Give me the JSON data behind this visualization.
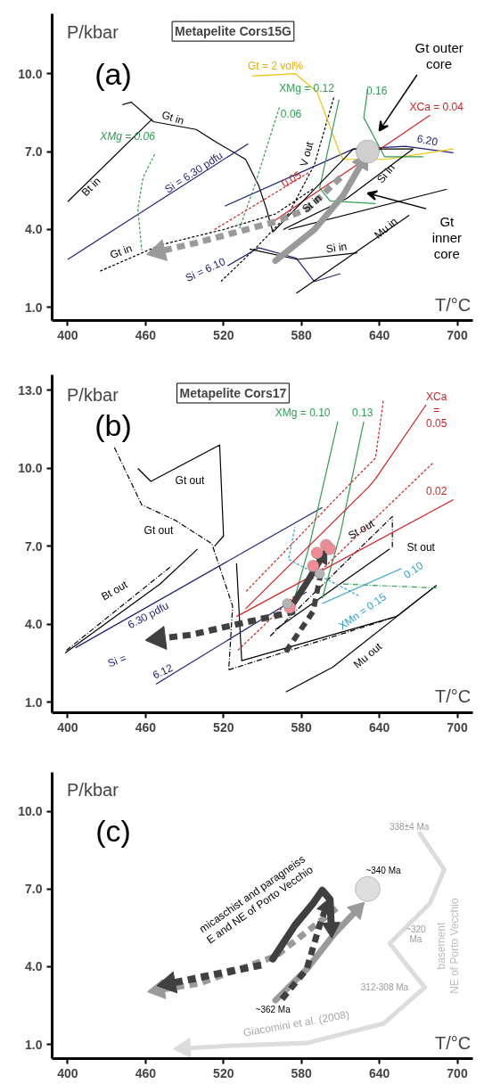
{
  "chart_data": [
    {
      "type": "line",
      "title": "Metapelite Cors15G",
      "xlabel": "T/°C",
      "ylabel": "P/kbar",
      "xlim": [
        388,
        712
      ],
      "ylim": [
        0.5,
        12.3
      ],
      "xticks": [
        400,
        460,
        520,
        580,
        640,
        700
      ],
      "yticks": [
        {
          "value": 1,
          "label": "1.0"
        },
        {
          "value": 4,
          "label": "4.0"
        },
        {
          "value": 7,
          "label": "7.0"
        },
        {
          "value": 10,
          "label": "10.0"
        }
      ],
      "series": [
        {
          "x": [
            442,
            449,
            466,
            499,
            513,
            537,
            547,
            553,
            558
          ],
          "values": [
            8.8,
            8.9,
            8.15,
            7.85,
            7.4,
            6.7,
            5.7,
            4.8,
            3.9
          ],
          "color": "#000000",
          "line_style": "solid"
        },
        {
          "x": [
            465,
            400
          ],
          "values": [
            8.25,
            5.07
          ],
          "color": "#000000",
          "line_style": "solid"
        },
        {
          "x": [
            539,
            400
          ],
          "values": [
            7.3,
            2.85
          ],
          "color": "#1f1f7a",
          "line_style": "solid"
        },
        {
          "x": [
            467,
            458,
            454,
            457
          ],
          "values": [
            6.9,
            6.0,
            4.8,
            3.2
          ],
          "color": "#2e9e4f",
          "line_style": "dashed"
        },
        {
          "x": [
            425,
            471,
            520,
            560,
            590
          ],
          "values": [
            2.4,
            3.4,
            4.0,
            4.6,
            5.6
          ],
          "color": "#000000",
          "line_style": "dashed"
        },
        {
          "x": [
            518,
            545,
            570,
            590,
            605
          ],
          "values": [
            2.0,
            3.3,
            4.6,
            6.5,
            9.1
          ],
          "color": "#000000",
          "line_style": "dashed"
        },
        {
          "x": [
            523,
            547,
            576,
            590,
            610
          ],
          "values": [
            2.6,
            3.3,
            2.9,
            2.0,
            2.3
          ],
          "color": "#1f1f7a",
          "line_style": "solid"
        },
        {
          "x": [
            521,
            620,
            660,
            697
          ],
          "values": [
            4.9,
            7.1,
            7.2,
            6.95
          ],
          "color": "#1f1f7a",
          "line_style": "solid"
        },
        {
          "x": [
            542,
            575,
            592,
            609,
            612,
            645,
            697
          ],
          "values": [
            9.9,
            10.0,
            9.3,
            7.0,
            6.7,
            6.7,
            7.1
          ],
          "color": "#f2c200",
          "line_style": "solid"
        },
        {
          "x": [
            609,
            594,
            602,
            637
          ],
          "values": [
            9.0,
            5.6,
            5.1,
            5.0
          ],
          "color": "#2e9e4f",
          "line_style": "solid"
        },
        {
          "x": [
            631,
            628,
            644,
            674
          ],
          "values": [
            9.4,
            8.3,
            6.8,
            6.8
          ],
          "color": "#2e9e4f",
          "line_style": "solid"
        },
        {
          "x": [
            563,
            544,
            532
          ],
          "values": [
            8.7,
            5.7,
            4.0
          ],
          "color": "#2e9e4f",
          "line_style": "dashed"
        },
        {
          "x": [
            558,
            679
          ],
          "values": [
            4.3,
            8.4
          ],
          "color": "#d42020",
          "line_style": "solid"
        },
        {
          "x": [
            513,
            586
          ],
          "values": [
            4.0,
            6.2
          ],
          "color": "#d42020",
          "line_style": "dashed"
        },
        {
          "x": [
            558,
            620,
            666
          ],
          "values": [
            3.9,
            7.1,
            7.1
          ],
          "color": "#000000",
          "line_style": "solid"
        },
        {
          "x": [
            566,
            615,
            666
          ],
          "values": [
            4.0,
            5.2,
            7.1
          ],
          "color": "#000000",
          "line_style": "solid"
        },
        {
          "x": [
            570,
            692
          ],
          "values": [
            4.0,
            5.55
          ],
          "color": "#000000",
          "line_style": "solid"
        },
        {
          "x": [
            576,
            663
          ],
          "values": [
            1.55,
            4.55
          ],
          "color": "#000000",
          "line_style": "solid"
        },
        {
          "x": [
            540,
            577,
            623
          ],
          "values": [
            3.25,
            2.85,
            3.1
          ],
          "color": "#000000",
          "line_style": "solid"
        },
        {
          "x": [
            560,
            590,
            612,
            627
          ],
          "values": [
            2.8,
            4.0,
            5.3,
            6.6
          ],
          "color": "#9a9a9a",
          "line_style": "solid"
        },
        {
          "x": [
            610,
            585,
            560,
            530,
            500,
            470
          ],
          "values": [
            6.0,
            4.8,
            4.3,
            3.9,
            3.5,
            3.15
          ],
          "color": "#9a9a9a",
          "line_style": "dashed"
        },
        {
          "type": "scatter",
          "x": [
            631
          ],
          "values": [
            7.0
          ],
          "color": "#d0d0d0",
          "marker": "circle"
        }
      ],
      "annotations": [
        "(a)",
        "Gt = 2 vol%",
        "XMg = 0.12",
        "0.16",
        "0.06",
        "XCa = 0.04",
        "Gt outer\ncore",
        "XMg = 0.06",
        "Gt in",
        "Bt in",
        "Si = 6.30 pdfu",
        "V out",
        "6.20",
        "0.05",
        "St in",
        "Si in",
        "Gt\ninner\ncore",
        "Gt in",
        "Si = 6.10",
        "Si in",
        "Mu in"
      ]
    },
    {
      "type": "line",
      "title": "Metapelite Cors17",
      "xlabel": "T/°C",
      "ylabel": "P/kbar",
      "xlim": [
        388,
        712
      ],
      "ylim": [
        0.6,
        13.6
      ],
      "xticks": [
        400,
        460,
        520,
        580,
        640,
        700
      ],
      "yticks": [
        {
          "value": 1,
          "label": "1.0"
        },
        {
          "value": 4,
          "label": "4.0"
        },
        {
          "value": 7,
          "label": "7.0"
        },
        {
          "value": 10,
          "label": "10.0"
        },
        {
          "value": 13,
          "label": "13.0"
        }
      ],
      "series": [
        {
          "x": [
            454,
            464,
            517,
            520,
            513
          ],
          "values": [
            10.0,
            9.5,
            10.9,
            7.4,
            7.0
          ],
          "color": "#000000",
          "line_style": "solid"
        },
        {
          "x": [
            436,
            457,
            483,
            511,
            527,
            524
          ],
          "values": [
            10.8,
            8.6,
            8.0,
            7.1,
            4.7,
            2.25
          ],
          "color": "#000000",
          "line_style": "dashdot"
        },
        {
          "x": [
            530,
            534,
            653,
            684
          ],
          "values": [
            6.35,
            2.6,
            4.3,
            5.5
          ],
          "color": "#000000",
          "line_style": "solid"
        },
        {
          "x": [
            524,
            653
          ],
          "values": [
            2.25,
            4.3
          ],
          "color": "#000000",
          "line_style": "dashdot"
        },
        {
          "x": [
            556,
            650,
            650
          ],
          "values": [
            3.55,
            8.15,
            6.9
          ],
          "color": "#000000",
          "line_style": "dashdot"
        },
        {
          "x": [
            560,
            648
          ],
          "values": [
            3.8,
            6.9
          ],
          "color": "#000000",
          "line_style": "solid"
        },
        {
          "x": [
            568,
            604,
            684
          ],
          "values": [
            1.4,
            2.35,
            5.5
          ],
          "color": "#000000",
          "line_style": "solid"
        },
        {
          "x": [
            398,
            471,
            500
          ],
          "values": [
            2.9,
            5.55,
            6.9
          ],
          "color": "#000000",
          "line_style": "solid"
        },
        {
          "x": [
            399,
            480
          ],
          "values": [
            3.0,
            6.25
          ],
          "color": "#000000",
          "line_style": "dashdot"
        },
        {
          "x": [
            406,
            596
          ],
          "values": [
            3.1,
            8.5
          ],
          "color": "#1f1f7a",
          "line_style": "solid"
        },
        {
          "x": [
            468,
            584
          ],
          "values": [
            1.7,
            5.25
          ],
          "color": "#1f1f7a",
          "line_style": "solid"
        },
        {
          "x": [
            608,
            586,
            573
          ],
          "values": [
            11.8,
            7.0,
            4.7
          ],
          "color": "#2e9e4f",
          "line_style": "solid"
        },
        {
          "x": [
            628,
            610,
            596
          ],
          "values": [
            11.8,
            7.5,
            5.0
          ],
          "color": "#2e9e4f",
          "line_style": "solid"
        },
        {
          "x": [
            684,
            612
          ],
          "values": [
            5.4,
            5.55
          ],
          "color": "#2e9e4f",
          "line_style": "dashdot"
        },
        {
          "x": [
            643,
            637,
            625,
            537
          ],
          "values": [
            12.6,
            10.4,
            9.8,
            5.25
          ],
          "color": "#d42020",
          "line_style": "dashed"
        },
        {
          "x": [
            676,
            637,
            632,
            537
          ],
          "values": [
            12.45,
            9.6,
            9.3,
            4.6
          ],
          "color": "#d42020",
          "line_style": "solid"
        },
        {
          "x": [
            681,
            530
          ],
          "values": [
            10.2,
            2.95
          ],
          "color": "#d42020",
          "line_style": "dashed"
        },
        {
          "x": [
            697,
            530
          ],
          "values": [
            8.8,
            4.3
          ],
          "color": "#d42020",
          "line_style": "solid"
        },
        {
          "x": [
            657,
            596
          ],
          "values": [
            6.15,
            4.8
          ],
          "color": "#2ea0d8",
          "line_style": "solid"
        },
        {
          "x": [
            624,
            570,
            575
          ],
          "values": [
            5.1,
            6.5,
            7.75
          ],
          "color": "#2ea0d8",
          "line_style": "dashed"
        },
        {
          "x": [
            571,
            584,
            596
          ],
          "values": [
            4.6,
            5.6,
            6.6
          ],
          "color": "#404040",
          "line_style": "solid"
        },
        {
          "x": [
            575,
            530,
            495,
            470
          ],
          "values": [
            4.5,
            4.0,
            3.6,
            3.45
          ],
          "color": "#404040",
          "line_style": "dashed"
        },
        {
          "x": [
            568,
            589,
            595
          ],
          "values": [
            2.95,
            4.5,
            6.0
          ],
          "color": "#404040",
          "line_style": "dashed"
        },
        {
          "type": "scatter",
          "x": [
            599,
            602,
            589,
            571,
            592
          ],
          "values": [
            7.05,
            6.9,
            6.25,
            4.65,
            6.75
          ],
          "color": "#f08c96",
          "marker": "circle"
        },
        {
          "type": "scatter",
          "x": [
            594,
            569
          ],
          "values": [
            5.95,
            4.8
          ],
          "color": "#b4b4b4",
          "marker": "circle"
        }
      ],
      "annotations": [
        "(b)",
        "XMg = 0.10",
        "0.13",
        "XCa\n=\n0.05",
        "0.02",
        "Gt out",
        "Gt out",
        "St out",
        "St out",
        "Bt out",
        "6.30 pdfu",
        "Si =",
        "6.12",
        "XMn = 0.15",
        "0.10",
        "Mu out"
      ]
    },
    {
      "type": "line",
      "xlabel": "T/°C",
      "ylabel": "P/kbar",
      "xlim": [
        388,
        712
      ],
      "ylim": [
        0.45,
        11.5
      ],
      "xticks": [
        400,
        460,
        520,
        580,
        640,
        700
      ],
      "yticks": [
        {
          "value": 1,
          "label": "1.0"
        },
        {
          "value": 4,
          "label": "4.0"
        },
        {
          "value": 7,
          "label": "7.0"
        },
        {
          "value": 10,
          "label": "10.0"
        }
      ],
      "series": [
        {
          "x": [
            671,
            690,
            679,
            648,
            662,
            675,
            643,
            584,
            527,
            490
          ],
          "values": [
            9.15,
            7.75,
            6.45,
            4.9,
            4.0,
            3.2,
            1.8,
            1.05,
            0.95,
            0.85
          ],
          "color": "#dcdcdc",
          "line_style": "solid"
        },
        {
          "x": [
            607,
            560,
            501,
            470
          ],
          "values": [
            6.25,
            4.4,
            3.35,
            3.1
          ],
          "color": "#9a9a9a",
          "line_style": "dashed"
        },
        {
          "x": [
            560,
            584,
            605,
            623
          ],
          "values": [
            2.7,
            3.9,
            5.25,
            6.2
          ],
          "color": "#9a9a9a",
          "line_style": "solid"
        },
        {
          "x": [
            558,
            575,
            589,
            596,
            602,
            603
          ],
          "values": [
            4.3,
            5.6,
            6.45,
            6.95,
            6.6,
            5.5
          ],
          "color": "#404040",
          "line_style": "solid"
        },
        {
          "x": [
            549,
            513,
            494,
            478
          ],
          "values": [
            4.06,
            3.7,
            3.5,
            3.35
          ],
          "color": "#404040",
          "line_style": "dashed"
        },
        {
          "x": [
            565,
            584,
            594,
            599
          ],
          "values": [
            2.75,
            3.9,
            5.6,
            6.3
          ],
          "color": "#404040",
          "line_style": "dashed"
        },
        {
          "type": "scatter",
          "x": [
            631
          ],
          "values": [
            7.0
          ],
          "color": "#dedede",
          "marker": "circle"
        }
      ],
      "annotations": [
        "(c)",
        "338±4 Ma",
        "~340 Ma",
        "micaschist and paragneiss\nE and NE of Porto Vecchio",
        "~320\nMa",
        "basement\nNE of Porto Vecchio",
        "312-308 Ma",
        "~362 Ma",
        "Giacomini et al. (2008)"
      ]
    }
  ]
}
